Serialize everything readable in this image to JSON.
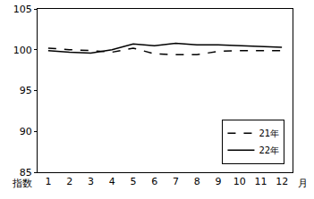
{
  "chart_data": {
    "type": "line",
    "categories": [
      "1",
      "2",
      "3",
      "4",
      "5",
      "6",
      "7",
      "8",
      "9",
      "10",
      "11",
      "12"
    ],
    "series": [
      {
        "name": "21年",
        "color": "#000000",
        "line_style": "dash",
        "values": [
          100.2,
          100.0,
          99.9,
          99.7,
          100.2,
          99.5,
          99.4,
          99.4,
          99.8,
          99.9,
          99.9,
          99.9
        ]
      },
      {
        "name": "22年",
        "color": "#000000",
        "line_style": "solid",
        "values": [
          99.9,
          99.7,
          99.6,
          100.0,
          100.7,
          100.5,
          100.8,
          100.6,
          100.6,
          100.5,
          100.4,
          100.3
        ]
      }
    ],
    "xlabel": "月",
    "ylabel": "指数",
    "ylim": [
      85,
      105
    ],
    "yticks": [
      85,
      90,
      95,
      100,
      105
    ],
    "grid": false,
    "legend": "lower right"
  }
}
